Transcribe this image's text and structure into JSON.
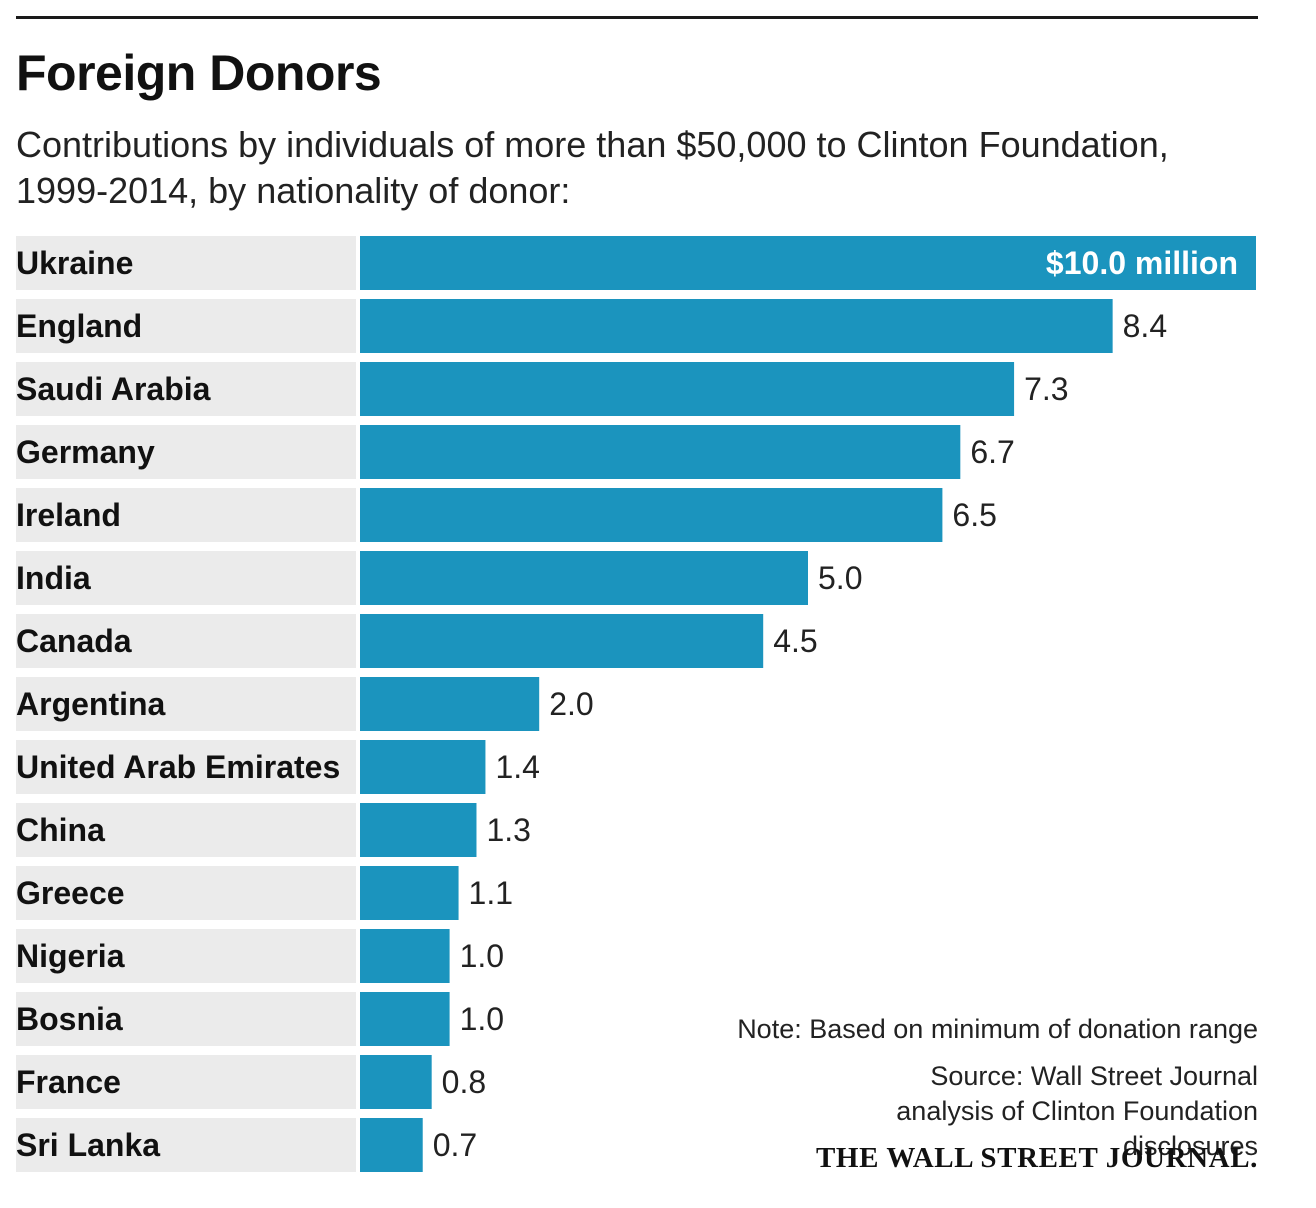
{
  "header": {
    "title": "Foreign Donors",
    "subtitle": "Contributions by individuals of more than $50,000 to Clinton Foundation, 1999-2014, by nationality of donor:"
  },
  "footer": {
    "note": "Note: Based on minimum of donation range",
    "source": "Source: Wall Street Journal analysis of Clinton Foundation disclosures",
    "logo_text": "THE WALL STREET JOURNAL."
  },
  "colors": {
    "bar": "#1b94be",
    "row_background": "#ebebeb"
  },
  "chart_data": {
    "type": "bar",
    "orientation": "horizontal",
    "title": "Foreign Donors",
    "subtitle": "Contributions by individuals of more than $50,000 to Clinton Foundation, 1999-2014, by nationality of donor:",
    "unit": "million",
    "xlim": [
      0,
      10
    ],
    "grid": false,
    "categories": [
      "Ukraine",
      "England",
      "Saudi Arabia",
      "Germany",
      "Ireland",
      "India",
      "Canada",
      "Argentina",
      "United Arab Emirates",
      "China",
      "Greece",
      "Nigeria",
      "Bosnia",
      "France",
      "Sri Lanka"
    ],
    "values": [
      10.0,
      8.4,
      7.3,
      6.7,
      6.5,
      5.0,
      4.5,
      2.0,
      1.4,
      1.3,
      1.1,
      1.0,
      1.0,
      0.8,
      0.7
    ],
    "value_labels": [
      "$10.0 million",
      "8.4",
      "7.3",
      "6.7",
      "6.5",
      "5.0",
      "4.5",
      "2.0",
      "1.4",
      "1.3",
      "1.1",
      "1.0",
      "1.0",
      "0.8",
      "0.7"
    ]
  }
}
